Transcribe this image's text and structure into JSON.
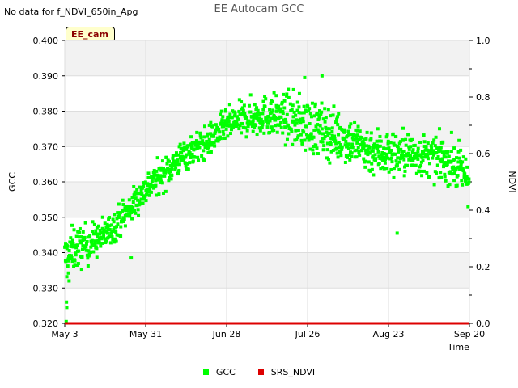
{
  "notice": "No data for f_NDVI_650in_Apg",
  "site_label": "EE_cam",
  "colors": {
    "gcc": "#00ff00",
    "srs_ndvi": "#dd0000",
    "band": "#f2f2f2",
    "grid": "#dddddd",
    "axis": "#000000",
    "label_bg": "#ffffcc",
    "label_text": "#8b0000"
  },
  "chart_data": {
    "type": "scatter",
    "title": "EE Autocam GCC",
    "xlabel": "Time",
    "ylabel": "GCC",
    "y2label": "NDVI",
    "x_tick_labels": [
      "May 3",
      "May 31",
      "Jun 28",
      "Jul 26",
      "Aug 23",
      "Sep 20"
    ],
    "x_tick_days": [
      0,
      28,
      56,
      84,
      112,
      140
    ],
    "xlim_days": [
      0,
      140
    ],
    "ylim": [
      0.32,
      0.4
    ],
    "y_ticks": [
      0.32,
      0.33,
      0.34,
      0.35,
      0.36,
      0.37,
      0.38,
      0.39,
      0.4
    ],
    "y_tick_labels": [
      "0.320",
      "0.330",
      "0.340",
      "0.350",
      "0.360",
      "0.370",
      "0.380",
      "0.390",
      "0.400"
    ],
    "y2lim": [
      0,
      1
    ],
    "y2_ticks": [
      0,
      0.2,
      0.4,
      0.6,
      0.8,
      1.0
    ],
    "y2_tick_labels": [
      "0.0",
      "0.2",
      "0.4",
      "0.6",
      "0.8",
      "1.0"
    ],
    "legend_position": "bottom-center",
    "series": [
      {
        "name": "GCC",
        "color": "#00ff00",
        "marker": "square",
        "trend": {
          "days": [
            0,
            1,
            3,
            7,
            14,
            21,
            28,
            35,
            42,
            49,
            56,
            63,
            70,
            77,
            84,
            91,
            98,
            105,
            112,
            119,
            126,
            133,
            140
          ],
          "values": [
            0.338,
            0.339,
            0.341,
            0.342,
            0.345,
            0.351,
            0.358,
            0.363,
            0.368,
            0.371,
            0.376,
            0.378,
            0.379,
            0.378,
            0.376,
            0.374,
            0.372,
            0.369,
            0.368,
            0.368,
            0.367,
            0.366,
            0.361
          ]
        },
        "spread": {
          "days": [
            0,
            14,
            28,
            42,
            56,
            70,
            84,
            98,
            112,
            126,
            140
          ],
          "values": [
            0.006,
            0.004,
            0.004,
            0.004,
            0.004,
            0.005,
            0.007,
            0.006,
            0.006,
            0.005,
            0.006
          ]
        },
        "outliers": [
          {
            "day": 0.5,
            "value": 0.3205
          },
          {
            "day": 0.7,
            "value": 0.3245
          },
          {
            "day": 0.6,
            "value": 0.326
          },
          {
            "day": 1.5,
            "value": 0.332
          },
          {
            "day": 23,
            "value": 0.3385
          },
          {
            "day": 115,
            "value": 0.3455
          },
          {
            "day": 83,
            "value": 0.3895
          },
          {
            "day": 89,
            "value": 0.39
          }
        ],
        "points_per_day": 9
      },
      {
        "name": "SRS_NDVI",
        "color": "#dd0000",
        "marker": "line",
        "axis": "y2",
        "x_days": [
          0,
          140
        ],
        "values": [
          0.0,
          0.0
        ]
      }
    ]
  }
}
